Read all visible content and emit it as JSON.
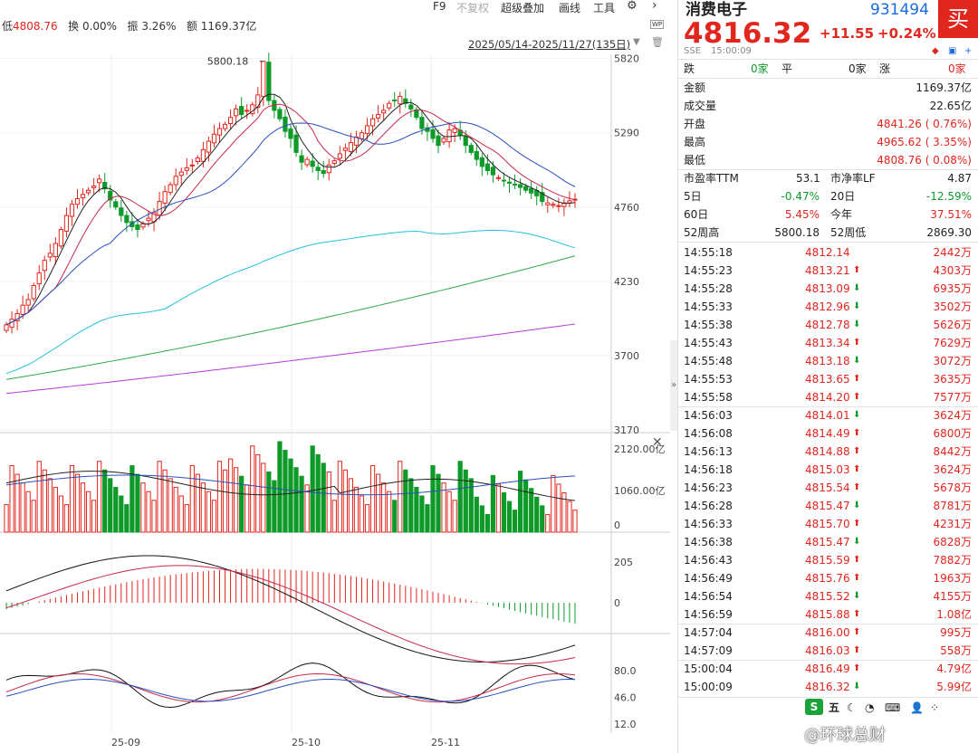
{
  "toolbar": {
    "low_label": "低",
    "low_value": "4808.76",
    "turnover_label": "换",
    "turnover_value": "0.00%",
    "amplitude_label": "振",
    "amplitude_value": "3.26%",
    "amount_label": "额",
    "amount_value": "1169.37亿",
    "f9": "F9",
    "no_adjust": "不复权",
    "overlay": "超级叠加",
    "draw": "画线",
    "tools": "工具",
    "range": "2025/05/14-2025/11/27(135日)"
  },
  "chart": {
    "peak_label": "5800.18",
    "y_ticks": [
      "5820",
      "5290",
      "4760",
      "4230",
      "3700",
      "3170"
    ],
    "vol_ticks": [
      "2120.00亿",
      "1060.00亿",
      "0"
    ],
    "macd_ticks": [
      "205",
      "0"
    ],
    "kdj_ticks": [
      "80.0",
      "46.0",
      "12.0"
    ],
    "x_ticks": [
      "25-09",
      "25-10",
      "25-11"
    ],
    "colors": {
      "up": "#e0261d",
      "down": "#0d9a29",
      "ma5": "#222222",
      "ma10": "#c8284b",
      "ma20": "#2a4fbd",
      "ma30": "#23c0e0",
      "ma60": "#2ea84b",
      "ma120": "#b63ad8"
    }
  },
  "chart_data": {
    "type": "candlestick",
    "ylim": [
      3170,
      5850
    ],
    "close": [
      3920,
      3960,
      4000,
      4060,
      4100,
      4200,
      4290,
      4380,
      4430,
      4500,
      4600,
      4700,
      4780,
      4820,
      4850,
      4880,
      4910,
      4960,
      4890,
      4810,
      4760,
      4700,
      4650,
      4620,
      4600,
      4640,
      4680,
      4720,
      4800,
      4870,
      4920,
      4980,
      5010,
      5040,
      5060,
      5110,
      5170,
      5230,
      5280,
      5320,
      5350,
      5400,
      5460,
      5420,
      5450,
      5490,
      5560,
      5800,
      5520,
      5450,
      5390,
      5300,
      5250,
      5150,
      5080,
      5100,
      5050,
      5020,
      5000,
      5060,
      5090,
      5140,
      5180,
      5220,
      5260,
      5290,
      5340,
      5390,
      5420,
      5450,
      5500,
      5520,
      5550,
      5500,
      5460,
      5400,
      5320,
      5300,
      5250,
      5200,
      5250,
      5310,
      5320,
      5270,
      5200,
      5150,
      5100,
      5050,
      5020,
      4990,
      4970,
      4950,
      4930,
      4920,
      4900,
      4880,
      4860,
      4840,
      4800,
      4790,
      4780,
      4770,
      4790,
      4805,
      4816
    ],
    "volume_scale": [
      0,
      2120
    ],
    "last": {
      "close": 4816.32,
      "change": 11.55,
      "pct": 0.24
    }
  },
  "quote": {
    "name": "消费电子",
    "code": "931494",
    "buy": "买",
    "price": "4816.32",
    "change": "+11.55",
    "pct": "+0.24%",
    "exchange": "SSE",
    "time": "15:00:09",
    "fall_label": "跌",
    "fall_value": "0家",
    "flat_label": "平",
    "flat_value": "0家",
    "rise_label": "涨",
    "rise_value": "0家",
    "stats": [
      {
        "label": "金额",
        "value": "1169.37亿",
        "cls": ""
      },
      {
        "label": "成交量",
        "value": "22.65亿",
        "cls": ""
      },
      {
        "label": "开盘",
        "value": "4841.26 ( 0.76%)",
        "cls": "red"
      },
      {
        "label": "最高",
        "value": "4965.62 ( 3.35%)",
        "cls": "red"
      },
      {
        "label": "最低",
        "value": "4808.76 ( 0.08%)",
        "cls": "red"
      }
    ],
    "pe_label": "市盈率TTM",
    "pe_value": "53.1",
    "pb_label": "市净率LF",
    "pb_value": "4.87",
    "d5_label": "5日",
    "d5_value": "-0.47%",
    "d20_label": "20日",
    "d20_value": "-12.59%",
    "d60_label": "60日",
    "d60_value": "5.45%",
    "ytd_label": "今年",
    "ytd_value": "37.51%",
    "w52h_label": "52周高",
    "w52h_value": "5800.18",
    "w52l_label": "52周低",
    "w52l_value": "2869.30"
  },
  "ticks": [
    {
      "t": "14:55:18",
      "p": "4812.14",
      "d": "",
      "v": "2442万"
    },
    {
      "t": "14:55:23",
      "p": "4813.21",
      "d": "up",
      "v": "4303万"
    },
    {
      "t": "14:55:28",
      "p": "4813.09",
      "d": "down",
      "v": "6935万"
    },
    {
      "t": "14:55:33",
      "p": "4812.96",
      "d": "down",
      "v": "3502万"
    },
    {
      "t": "14:55:38",
      "p": "4812.78",
      "d": "down",
      "v": "5626万"
    },
    {
      "t": "14:55:43",
      "p": "4813.34",
      "d": "up",
      "v": "7629万"
    },
    {
      "t": "14:55:48",
      "p": "4813.18",
      "d": "down",
      "v": "3072万"
    },
    {
      "t": "14:55:53",
      "p": "4813.65",
      "d": "up",
      "v": "3635万"
    },
    {
      "t": "14:55:58",
      "p": "4814.20",
      "d": "up",
      "v": "7577万"
    },
    {
      "t": "14:56:03",
      "p": "4814.01",
      "d": "down",
      "v": "3624万"
    },
    {
      "t": "14:56:08",
      "p": "4814.49",
      "d": "up",
      "v": "6800万"
    },
    {
      "t": "14:56:13",
      "p": "4814.88",
      "d": "up",
      "v": "8442万"
    },
    {
      "t": "14:56:18",
      "p": "4815.03",
      "d": "up",
      "v": "3624万"
    },
    {
      "t": "14:56:23",
      "p": "4815.54",
      "d": "up",
      "v": "5678万"
    },
    {
      "t": "14:56:28",
      "p": "4815.47",
      "d": "down",
      "v": "8781万"
    },
    {
      "t": "14:56:33",
      "p": "4815.70",
      "d": "up",
      "v": "4231万"
    },
    {
      "t": "14:56:38",
      "p": "4815.47",
      "d": "down",
      "v": "6828万"
    },
    {
      "t": "14:56:43",
      "p": "4815.59",
      "d": "up",
      "v": "7882万"
    },
    {
      "t": "14:56:49",
      "p": "4815.76",
      "d": "up",
      "v": "1963万"
    },
    {
      "t": "14:56:54",
      "p": "4815.52",
      "d": "down",
      "v": "4155万"
    },
    {
      "t": "14:56:59",
      "p": "4815.88",
      "d": "up",
      "v": "1.08亿"
    },
    {
      "t": "14:57:04",
      "p": "4816.00",
      "d": "up",
      "v": "995万"
    },
    {
      "t": "14:57:09",
      "p": "4816.03",
      "d": "up",
      "v": "558万"
    },
    {
      "t": "15:00:04",
      "p": "4816.49",
      "d": "up",
      "v": "4.79亿"
    },
    {
      "t": "15:00:09",
      "p": "4816.32",
      "d": "down",
      "v": "5.99亿"
    }
  ],
  "footer": {
    "icon_label": "五",
    "watermark": "@环球总财"
  }
}
